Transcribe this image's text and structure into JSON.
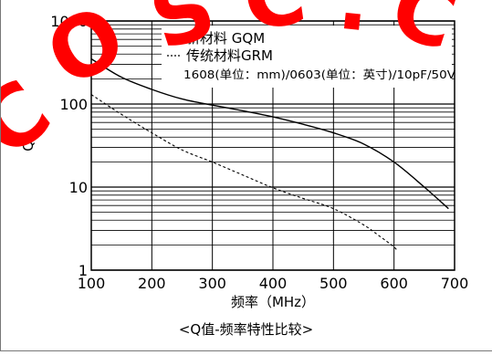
{
  "chart_data": {
    "type": "line",
    "title": "",
    "xlabel": "频率（MHz）",
    "ylabel": "Q",
    "xlim": [
      100,
      700
    ],
    "ylim": [
      1,
      1000
    ],
    "y_scale": "log",
    "grid": true,
    "x_ticks": [
      "100",
      "200",
      "300",
      "400",
      "500",
      "600",
      "700"
    ],
    "y_ticks": [
      "1",
      "10",
      "100",
      "1000"
    ],
    "legend": {
      "position": "top-right",
      "note": "1608(单位：mm)/0603(单位：英寸)/10pF/50V"
    },
    "series": [
      {
        "name": "新材料 GQM",
        "style": "solid",
        "x": [
          100,
          150,
          200,
          250,
          300,
          350,
          400,
          450,
          500,
          550,
          600,
          650,
          690
        ],
        "y": [
          350,
          210,
          150,
          115,
          97,
          83,
          70,
          57,
          45,
          33,
          20,
          10,
          5.5
        ]
      },
      {
        "name": "传统材料GRM",
        "style": "dashed",
        "x": [
          100,
          150,
          200,
          250,
          300,
          350,
          400,
          450,
          500,
          550,
          575,
          600,
          605
        ],
        "y": [
          130,
          75,
          45,
          28,
          20,
          14,
          9.8,
          7.3,
          5.5,
          3.5,
          2.6,
          1.9,
          1.7
        ]
      }
    ],
    "caption": "<Q值-频率特性比较>"
  },
  "colors": {
    "axis": "#000000",
    "grid": "#000000",
    "watermark": "#ff0000"
  },
  "watermark": "COSC.C"
}
